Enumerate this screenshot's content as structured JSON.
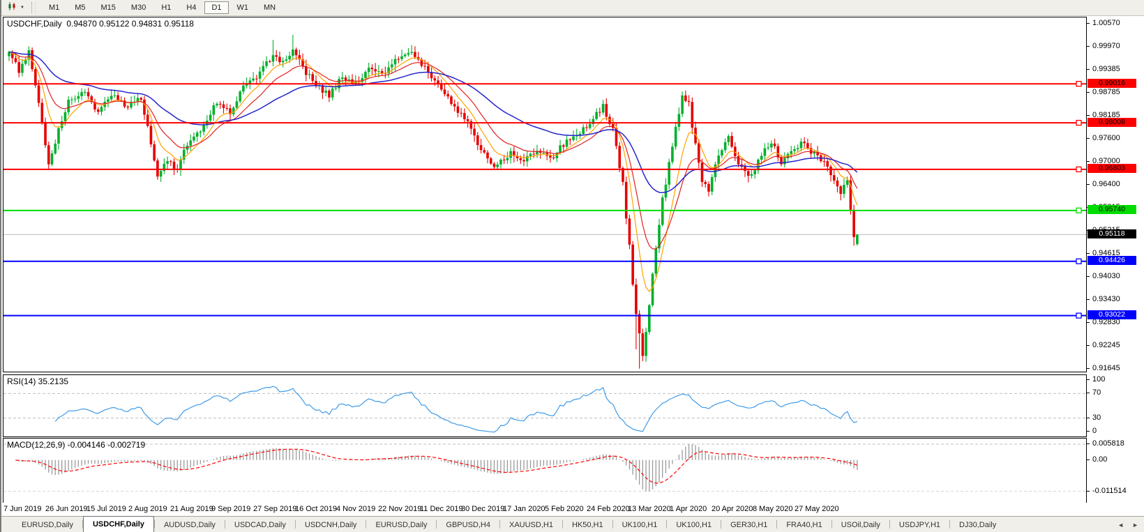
{
  "toolbar": {
    "chart_type_icon": "candlestick-chart-icon",
    "dropdown_caret": "▼",
    "periods": [
      {
        "label": "M1",
        "active": false
      },
      {
        "label": "M5",
        "active": false
      },
      {
        "label": "M15",
        "active": false
      },
      {
        "label": "M30",
        "active": false
      },
      {
        "label": "H1",
        "active": false
      },
      {
        "label": "H4",
        "active": false
      },
      {
        "label": "D1",
        "active": true
      },
      {
        "label": "W1",
        "active": false
      },
      {
        "label": "MN",
        "active": false
      }
    ]
  },
  "main_chart": {
    "title_symbol": "USDCHF,Daily",
    "title_ohlc": "0.94870 0.95122 0.94831 0.95118",
    "axis_ticks": [
      "1.00570",
      "0.99970",
      "0.99385",
      "0.98785",
      "0.98185",
      "0.97600",
      "0.97000",
      "0.96400",
      "0.95815",
      "0.95215",
      "0.94615",
      "0.94030",
      "0.93430",
      "0.92830",
      "0.92245",
      "0.91645"
    ],
    "levels": [
      {
        "label": "0.99016",
        "value": 0.99016,
        "color": "#ff0000",
        "text_color": "#000000"
      },
      {
        "label": "0.98008",
        "value": 0.98008,
        "color": "#ff0000",
        "text_color": "#000000"
      },
      {
        "label": "0.96803",
        "value": 0.96803,
        "color": "#ff0000",
        "text_color": "#000000"
      },
      {
        "label": "0.95740",
        "value": 0.9574,
        "color": "#00dd00",
        "text_color": "#000000"
      },
      {
        "label": "0.94426",
        "value": 0.94426,
        "color": "#0000ff",
        "text_color": "#ffffff"
      },
      {
        "label": "0.93022",
        "value": 0.93022,
        "color": "#0000ff",
        "text_color": "#ffffff"
      }
    ],
    "current_price": {
      "label": "0.95118",
      "value": 0.95118,
      "line_color": "#bcbcbc",
      "bg": "#000000",
      "text_color": "#ffffff"
    }
  },
  "rsi_panel": {
    "title": "RSI(14) 35.2135",
    "value": 35.2135,
    "line_color": "#3d9be9",
    "ticks": [
      {
        "label": "100",
        "value": 100
      },
      {
        "label": "70",
        "value": 70
      },
      {
        "label": "30",
        "value": 30
      },
      {
        "label": "0",
        "value": 0
      }
    ],
    "dashed_levels": [
      70,
      30
    ]
  },
  "macd_panel": {
    "title": "MACD(12,26,9) -0.004146 -0.002719",
    "values": [
      -0.004146,
      -0.002719
    ],
    "histogram_color": "#9a9a9a",
    "signal_color": "#ff0000",
    "ticks": [
      {
        "label": "0.005818",
        "value": 0.005818
      },
      {
        "label": "0.00",
        "value": 0
      },
      {
        "label": "-0.011514",
        "value": -0.011514
      }
    ]
  },
  "date_axis": [
    "7 Jun 2019",
    "26 Jun 2019",
    "15 Jul 2019",
    "2 Aug 2019",
    "21 Aug 2019",
    "9 Sep 2019",
    "27 Sep 2019",
    "16 Oct 2019",
    "4 Nov 2019",
    "22 Nov 2019",
    "11 Dec 2019",
    "30 Dec 2019",
    "17 Jan 2020",
    "5 Feb 2020",
    "24 Feb 2020",
    "13 Mar 2020",
    "1 Apr 2020",
    "20 Apr 2020",
    "8 May 2020",
    "27 May 2020"
  ],
  "tab_bar": {
    "tabs": [
      {
        "label": "EURUSD,Daily",
        "active": false
      },
      {
        "label": "USDCHF,Daily",
        "active": true
      },
      {
        "label": "AUDUSD,Daily",
        "active": false
      },
      {
        "label": "USDCAD,Daily",
        "active": false
      },
      {
        "label": "USDCNH,Daily",
        "active": false
      },
      {
        "label": "EURUSD,Daily",
        "active": false
      },
      {
        "label": "GBPUSD,H4",
        "active": false
      },
      {
        "label": "XAUUSD,H1",
        "active": false
      },
      {
        "label": "HK50,H1",
        "active": false
      },
      {
        "label": "UK100,H1",
        "active": false
      },
      {
        "label": "UK100,H1",
        "active": false
      },
      {
        "label": "GER30,H1",
        "active": false
      },
      {
        "label": "FRA40,H1",
        "active": false
      },
      {
        "label": "USOil,Daily",
        "active": false
      },
      {
        "label": "USDJPY,H1",
        "active": false
      },
      {
        "label": "DJ30,Daily",
        "active": false
      }
    ],
    "scroll_left": "◄",
    "scroll_right": "►"
  },
  "chart_data": {
    "type": "candlestick",
    "symbol": "USDCHF",
    "timeframe": "Daily",
    "title": "USDCHF,Daily 0.94870 0.95122 0.94831 0.95118",
    "last_ohlc": {
      "open": 0.9487,
      "high": 0.95122,
      "low": 0.94831,
      "close": 0.95118
    },
    "current_price": 0.95118,
    "price_axis_range": {
      "top": 1.00732,
      "bottom": 0.91573
    },
    "y_axis_ticks": [
      1.0057,
      0.9997,
      0.99385,
      0.98785,
      0.98185,
      0.976,
      0.97,
      0.964,
      0.95815,
      0.95215,
      0.94615,
      0.9403,
      0.9343,
      0.9283,
      0.92245,
      0.91645
    ],
    "x_axis_dates": [
      "7 Jun 2019",
      "26 Jun 2019",
      "15 Jul 2019",
      "2 Aug 2019",
      "21 Aug 2019",
      "9 Sep 2019",
      "27 Sep 2019",
      "16 Oct 2019",
      "4 Nov 2019",
      "22 Nov 2019",
      "11 Dec 2019",
      "30 Dec 2019",
      "17 Jan 2020",
      "5 Feb 2020",
      "24 Feb 2020",
      "13 Mar 2020",
      "1 Apr 2020",
      "20 Apr 2020",
      "8 May 2020",
      "27 May 2020"
    ],
    "num_candles": 258,
    "up_color": "#00b02c",
    "down_color": "#e60000",
    "close_waypoints": [
      [
        0,
        0.9985
      ],
      [
        3,
        0.9935
      ],
      [
        6,
        0.999
      ],
      [
        9,
        0.986
      ],
      [
        12,
        0.969
      ],
      [
        15,
        0.978
      ],
      [
        18,
        0.9855
      ],
      [
        23,
        0.988
      ],
      [
        27,
        0.983
      ],
      [
        32,
        0.988
      ],
      [
        35,
        0.984
      ],
      [
        40,
        0.9865
      ],
      [
        43,
        0.975
      ],
      [
        45,
        0.9655
      ],
      [
        48,
        0.9705
      ],
      [
        51,
        0.968
      ],
      [
        54,
        0.9745
      ],
      [
        59,
        0.979
      ],
      [
        63,
        0.9855
      ],
      [
        67,
        0.983
      ],
      [
        71,
        0.989
      ],
      [
        75,
        0.992
      ],
      [
        80,
        0.9975
      ],
      [
        83,
        0.9955
      ],
      [
        86,
        0.999
      ],
      [
        90,
        0.993
      ],
      [
        93,
        0.99
      ],
      [
        97,
        0.987
      ],
      [
        101,
        0.992
      ],
      [
        105,
        0.99
      ],
      [
        109,
        0.994
      ],
      [
        113,
        0.9925
      ],
      [
        118,
        0.997
      ],
      [
        122,
        0.999
      ],
      [
        126,
        0.994
      ],
      [
        130,
        0.99
      ],
      [
        135,
        0.9845
      ],
      [
        139,
        0.98
      ],
      [
        143,
        0.973
      ],
      [
        147,
        0.9685
      ],
      [
        152,
        0.972
      ],
      [
        156,
        0.97
      ],
      [
        160,
        0.973
      ],
      [
        164,
        0.9705
      ],
      [
        168,
        0.9745
      ],
      [
        173,
        0.978
      ],
      [
        177,
        0.981
      ],
      [
        180,
        0.9845
      ],
      [
        183,
        0.978
      ],
      [
        186,
        0.964
      ],
      [
        188,
        0.948
      ],
      [
        190,
        0.93
      ],
      [
        192,
        0.92
      ],
      [
        194,
        0.933
      ],
      [
        196,
        0.948
      ],
      [
        198,
        0.96
      ],
      [
        201,
        0.974
      ],
      [
        204,
        0.987
      ],
      [
        206,
        0.985
      ],
      [
        208,
        0.974
      ],
      [
        210,
        0.965
      ],
      [
        212,
        0.9625
      ],
      [
        215,
        0.972
      ],
      [
        218,
        0.976
      ],
      [
        221,
        0.97
      ],
      [
        225,
        0.966
      ],
      [
        228,
        0.972
      ],
      [
        231,
        0.975
      ],
      [
        234,
        0.97
      ],
      [
        237,
        0.973
      ],
      [
        240,
        0.975
      ],
      [
        244,
        0.972
      ],
      [
        247,
        0.97
      ],
      [
        250,
        0.9655
      ],
      [
        252,
        0.9625
      ],
      [
        254,
        0.9645
      ],
      [
        256,
        0.951
      ],
      [
        257,
        0.95118
      ]
    ],
    "wick_overrides": [
      {
        "i": 80,
        "high": 1.0015
      },
      {
        "i": 86,
        "high": 1.0028
      },
      {
        "i": 122,
        "high": 1.0002
      },
      {
        "i": 190,
        "low": 0.9215
      },
      {
        "i": 191,
        "low": 0.9165
      },
      {
        "i": 256,
        "low": 0.9483
      }
    ],
    "moving_averages": [
      {
        "name": "fast",
        "period": 8,
        "color": "#ffa200"
      },
      {
        "name": "medium",
        "period": 16,
        "color": "#e02020"
      },
      {
        "name": "slow",
        "period": 45,
        "color": "#2424cc"
      }
    ],
    "horizontal_levels": [
      {
        "price": 0.99016,
        "color": "#ff0000"
      },
      {
        "price": 0.98008,
        "color": "#ff0000"
      },
      {
        "price": 0.96803,
        "color": "#ff0000"
      },
      {
        "price": 0.9574,
        "color": "#00dd00"
      },
      {
        "price": 0.94426,
        "color": "#0000ff"
      },
      {
        "price": 0.93022,
        "color": "#0000ff"
      }
    ],
    "indicators": [
      {
        "name": "RSI",
        "period": 14,
        "current_value": 35.2135,
        "scale": [
          0,
          30,
          70,
          100
        ]
      },
      {
        "name": "MACD",
        "params": [
          12,
          26,
          9
        ],
        "current_values": [
          -0.004146,
          -0.002719
        ],
        "scale_max": 0.005818,
        "scale_min": -0.011514
      }
    ]
  }
}
